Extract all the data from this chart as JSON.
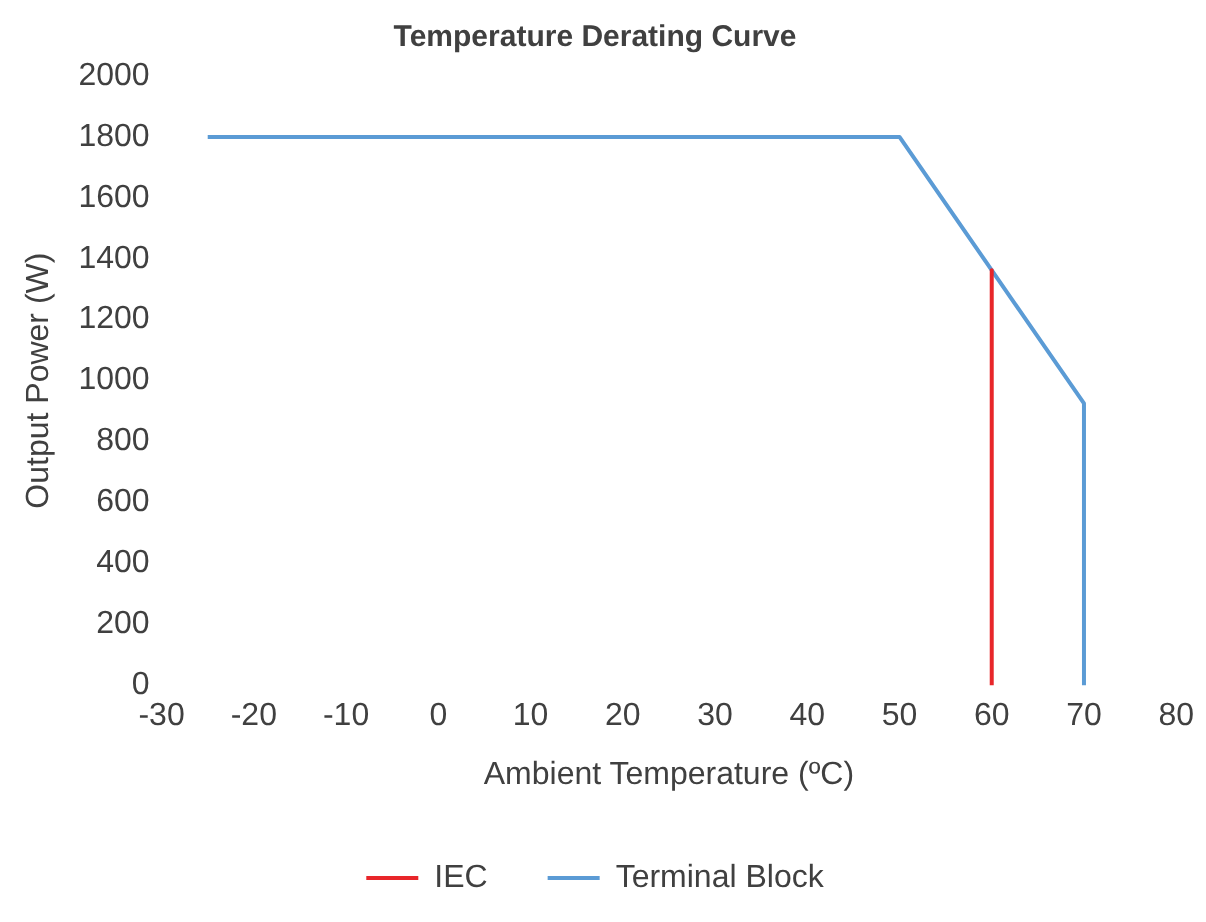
{
  "chart_data": {
    "type": "line",
    "title": "Temperature Derating Curve",
    "xlabel": "Ambient Temperature (ºC)",
    "ylabel": "Output Power (W)",
    "series": [
      {
        "name": "IEC",
        "color": "#e8262a",
        "x": [
          60,
          60
        ],
        "values": [
          1362,
          0
        ]
      },
      {
        "name": "Terminal Block",
        "color": "#5b9bd5",
        "x": [
          -25,
          50,
          70,
          70
        ],
        "values": [
          1800,
          1800,
          925,
          0
        ]
      }
    ],
    "xlim": [
      -30,
      80
    ],
    "xticks": [
      -30,
      -20,
      -10,
      0,
      10,
      20,
      30,
      40,
      50,
      60,
      70,
      80
    ],
    "ylim": [
      0,
      2000
    ],
    "yticks": [
      0,
      200,
      400,
      600,
      800,
      1000,
      1200,
      1400,
      1600,
      1800,
      2000
    ],
    "grid": false,
    "legend": "bottom",
    "marker": "none",
    "line_style": "solid"
  }
}
